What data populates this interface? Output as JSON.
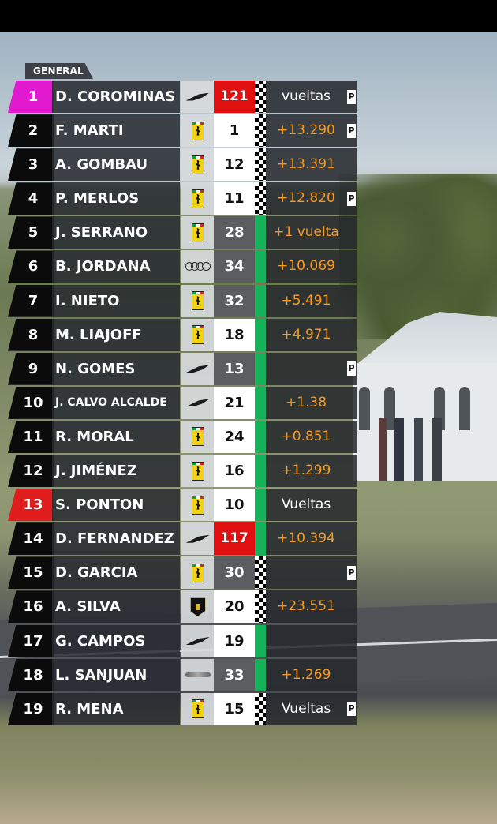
{
  "header": {
    "tab_label": "GENERAL"
  },
  "colors": {
    "flag_green": "#16b25a",
    "gap_orange": "#f59a22",
    "leader_pos": "#e11ad0",
    "alert_red": "#e01c1c"
  },
  "rows": [
    {
      "pos": "1",
      "name": "D. COROMINAS",
      "brand": "mclaren-icon",
      "num": "121",
      "gap": "vueltas",
      "pit": "P",
      "pos_style": "magenta",
      "num_style": "red",
      "flag": "check",
      "gap_color": "white"
    },
    {
      "pos": "2",
      "name": "F. MARTI",
      "brand": "ferrari-icon",
      "num": "1",
      "gap": "+13.290",
      "pit": "P",
      "flag": "check",
      "gap_color": "orange"
    },
    {
      "pos": "3",
      "name": "A. GOMBAU",
      "brand": "ferrari-icon",
      "num": "12",
      "gap": "+13.391",
      "pit": "",
      "flag": "check",
      "gap_color": "orange"
    },
    {
      "pos": "4",
      "name": "P. MERLOS",
      "brand": "ferrari-icon",
      "num": "11",
      "gap": "+12.820",
      "pit": "P",
      "flag": "check",
      "gap_color": "orange"
    },
    {
      "pos": "5",
      "name": "J. SERRANO",
      "brand": "ferrari-icon",
      "num": "28",
      "gap": "+1 vuelta",
      "pit": "",
      "num_style": "dark",
      "flag": "green",
      "gap_color": "orange"
    },
    {
      "pos": "6",
      "name": "B. JORDANA",
      "brand": "audi-icon",
      "num": "34",
      "gap": "+10.069",
      "pit": "",
      "num_style": "dark",
      "flag": "green",
      "gap_color": "orange"
    },
    {
      "pos": "7",
      "name": "I. NIETO",
      "brand": "ferrari-icon",
      "num": "32",
      "gap": "+5.491",
      "pit": "",
      "num_style": "dark",
      "flag": "green",
      "gap_color": "orange"
    },
    {
      "pos": "8",
      "name": "M. LIAJOFF",
      "brand": "ferrari-icon",
      "num": "18",
      "gap": "+4.971",
      "pit": "",
      "flag": "green",
      "gap_color": "orange"
    },
    {
      "pos": "9",
      "name": "N. GOMES",
      "brand": "mclaren-icon",
      "num": "13",
      "gap": "",
      "pit": "P",
      "num_style": "dark",
      "flag": "green",
      "gap_color": "orange"
    },
    {
      "pos": "10",
      "name": "J. CALVO ALCALDE",
      "brand": "mclaren-icon",
      "num": "21",
      "gap": "+1.38",
      "pit": "",
      "flag": "green",
      "gap_color": "orange",
      "name_small": true
    },
    {
      "pos": "11",
      "name": "R. MORAL",
      "brand": "ferrari-icon",
      "num": "24",
      "gap": "+0.851",
      "pit": "",
      "flag": "green",
      "gap_color": "orange"
    },
    {
      "pos": "12",
      "name": "J. JIMÉNEZ",
      "brand": "ferrari-icon",
      "num": "16",
      "gap": "+1.299",
      "pit": "",
      "flag": "green",
      "gap_color": "orange"
    },
    {
      "pos": "13",
      "name": "S. PONTON",
      "brand": "ferrari-icon",
      "num": "10",
      "gap": "Vueltas",
      "pit": "",
      "pos_style": "red",
      "flag": "green",
      "gap_color": "white"
    },
    {
      "pos": "14",
      "name": "D. FERNANDEZ",
      "brand": "mclaren-icon",
      "num": "117",
      "gap": "+10.394",
      "pit": "",
      "num_style": "red",
      "flag": "green",
      "gap_color": "orange"
    },
    {
      "pos": "15",
      "name": "D. GARCIA",
      "brand": "ferrari-icon",
      "num": "30",
      "gap": "",
      "pit": "P",
      "num_style": "dark",
      "flag": "check",
      "gap_color": "orange"
    },
    {
      "pos": "16",
      "name": "A. SILVA",
      "brand": "lamborghini-icon",
      "num": "20",
      "gap": "+23.551",
      "pit": "",
      "flag": "check",
      "gap_color": "orange"
    },
    {
      "pos": "17",
      "name": "G. CAMPOS",
      "brand": "mclaren-icon",
      "num": "19",
      "gap": "",
      "pit": "",
      "flag": "green",
      "gap_color": "orange"
    },
    {
      "pos": "18",
      "name": "L. SANJUAN",
      "brand": "bentley-icon",
      "num": "33",
      "gap": "+1.269",
      "pit": "",
      "num_style": "dark",
      "flag": "green",
      "gap_color": "orange"
    },
    {
      "pos": "19",
      "name": "R. MENA",
      "brand": "ferrari-icon",
      "num": "15",
      "gap": "Vueltas",
      "pit": "P",
      "flag": "check",
      "gap_color": "white"
    }
  ]
}
